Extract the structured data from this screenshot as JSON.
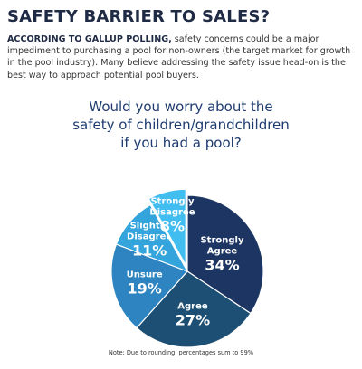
{
  "header": {
    "title": "SAFETY BARRIER TO SALES?",
    "lead": "ACCORDING TO GALLUP POLLING,",
    "body": " safety concerns could be a major impediment to purchasing a pool for non-owners (the target market for growth in the pool industry). Many believe addressing the safety issue head-on is the best way to approach potential pool buyers."
  },
  "chart_data": {
    "type": "pie",
    "title_lines": [
      "Would you worry about the",
      "safety of children/grandchildren",
      "if you had a pool?"
    ],
    "categories": [
      "Strongly Agree",
      "Agree",
      "Unsure",
      "Slightly Disagree",
      "Strongly Disagree"
    ],
    "values": [
      34,
      27,
      19,
      11,
      8
    ],
    "value_labels": [
      "34%",
      "27%",
      "19%",
      "11%",
      "8%"
    ],
    "category_label_lines": [
      [
        "Strongly",
        "Agree"
      ],
      [
        "Agree"
      ],
      [
        "Unsure"
      ],
      [
        "Slightly",
        "Disagree"
      ],
      [
        "Strongly",
        "Disagree"
      ]
    ],
    "colors": [
      "#1c3562",
      "#1c4f73",
      "#2e84c0",
      "#33a4dc",
      "#41bdf0"
    ],
    "start": "12 o'clock, clockwise",
    "legend": "none",
    "note": "Note: Due to rounding, percentages sum to 99%"
  }
}
